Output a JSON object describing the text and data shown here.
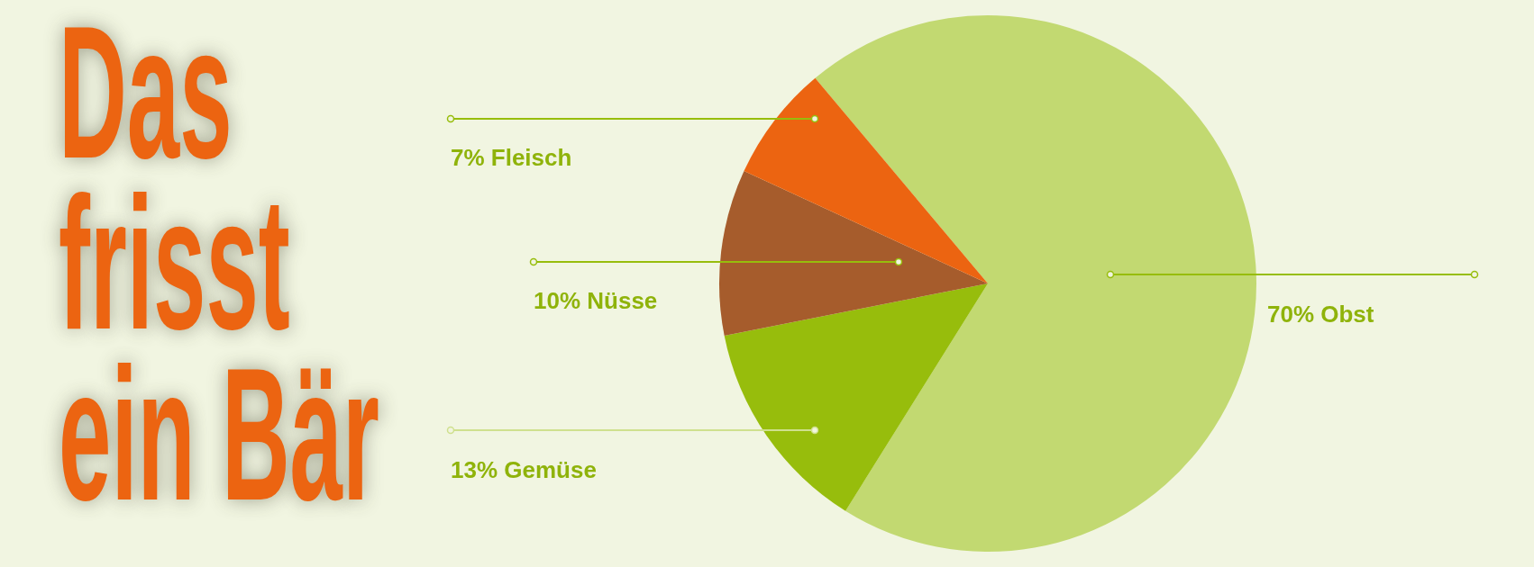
{
  "chart_data": {
    "type": "pie",
    "title": "Das frisst ein Bär",
    "categories": [
      "Obst",
      "Gemüse",
      "Nüsse",
      "Fleisch"
    ],
    "values": [
      70,
      13,
      10,
      7
    ],
    "colors": [
      "#c2d971",
      "#97bd0c",
      "#a65c2c",
      "#ec6411"
    ],
    "value_labels": [
      "70%",
      "13%",
      "10%",
      "7%"
    ]
  }
}
